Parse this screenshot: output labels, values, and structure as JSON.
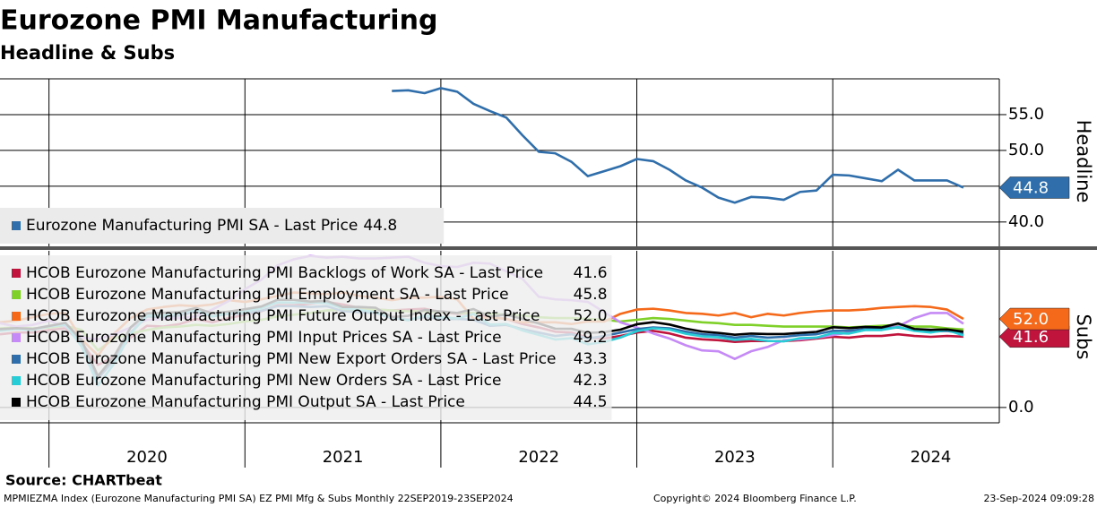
{
  "title": "Eurozone PMI Manufacturing",
  "subtitle": "Headline & Subs",
  "source": "Source: CHARTbeat",
  "footer_left": "MPMIEZMA Index (Eurozone Manufacturing PMI SA) EZ PMI Mfg & Subs  Monthly 22SEP2019-23SEP2024",
  "copyright": "Copyright© 2024 Bloomberg Finance L.P.",
  "timestamp": "23-Sep-2024 09:09:28",
  "chart_data": [
    {
      "type": "line",
      "y_label": "Headline",
      "x": [
        2021.75,
        2021.8333,
        2021.9167,
        2022,
        2022.0833,
        2022.1667,
        2022.25,
        2022.3333,
        2022.4167,
        2022.5,
        2022.5833,
        2022.6667,
        2022.75,
        2022.8333,
        2022.9167,
        2023,
        2023.0833,
        2023.1667,
        2023.25,
        2023.3333,
        2023.4167,
        2023.5,
        2023.5833,
        2023.6667,
        2023.75,
        2023.8333,
        2023.9167,
        2024,
        2024.0833,
        2024.1667,
        2024.25,
        2024.3333,
        2024.4167,
        2024.5,
        2024.5833,
        2024.6667
      ],
      "xlim": [
        2019.75,
        2024.85
      ],
      "xgrid": [
        2020,
        2021,
        2022,
        2023,
        2024
      ],
      "ylim": [
        36.6,
        60
      ],
      "ygrid": [
        40,
        45,
        50,
        55
      ],
      "yticks": [
        {
          "value": 40,
          "label": "40.0"
        },
        {
          "value": 50,
          "label": "50.0"
        },
        {
          "value": 55,
          "label": "55.0"
        }
      ],
      "series": [
        {
          "name": "Eurozone Manufacturing PMI SA - Last Price",
          "color": "#2f6eab",
          "last_label": "44.8",
          "tag": true,
          "values": [
            58.3,
            58.4,
            58.0,
            58.7,
            58.2,
            56.5,
            55.5,
            54.6,
            52.1,
            49.8,
            49.6,
            48.4,
            46.4,
            47.1,
            47.8,
            48.8,
            48.5,
            47.3,
            45.8,
            44.8,
            43.4,
            42.7,
            43.5,
            43.4,
            43.1,
            44.2,
            44.4,
            46.6,
            46.5,
            46.1,
            45.7,
            47.3,
            45.8,
            45.8,
            45.8,
            44.8
          ]
        }
      ]
    },
    {
      "type": "line",
      "y_label": "Subs",
      "x": [
        2019.75,
        2019.8333,
        2019.9167,
        2020,
        2020.0833,
        2020.1667,
        2020.25,
        2020.3333,
        2020.4167,
        2020.5,
        2020.5833,
        2020.6667,
        2020.75,
        2020.8333,
        2020.9167,
        2021,
        2021.0833,
        2021.1667,
        2021.25,
        2021.3333,
        2021.4167,
        2021.5,
        2021.5833,
        2021.6667,
        2021.75,
        2021.8333,
        2021.9167,
        2022,
        2022.0833,
        2022.1667,
        2022.25,
        2022.3333,
        2022.4167,
        2022.5,
        2022.5833,
        2022.6667,
        2022.75,
        2022.8333,
        2022.9167,
        2023,
        2023.0833,
        2023.1667,
        2023.25,
        2023.3333,
        2023.4167,
        2023.5,
        2023.5833,
        2023.6667,
        2023.75,
        2023.8333,
        2023.9167,
        2024,
        2024.0833,
        2024.1667,
        2024.25,
        2024.3333,
        2024.4167,
        2024.5,
        2024.5833,
        2024.6667
      ],
      "xlim": [
        2019.75,
        2024.85
      ],
      "xgrid": [
        2020,
        2021,
        2022,
        2023,
        2024
      ],
      "xticks": [
        {
          "value": 2020.5,
          "label": "2020"
        },
        {
          "value": 2021.5,
          "label": "2021"
        },
        {
          "value": 2022.5,
          "label": "2022"
        },
        {
          "value": 2023.5,
          "label": "2023"
        },
        {
          "value": 2024.5,
          "label": "2024"
        }
      ],
      "ylim": [
        -9,
        92
      ],
      "ygrid": [
        0
      ],
      "yticks": [
        {
          "value": 0,
          "label": "0.0"
        }
      ],
      "series": [
        {
          "name": "HCOB Eurozone Manufacturing PMI Backlogs of Work SA - Last Price",
          "color": "#c0143c",
          "last_label": "41.6",
          "tag": true,
          "values": [
            43.0,
            44.0,
            44.0,
            45.5,
            46.5,
            38.0,
            25.0,
            30.0,
            41.0,
            48.0,
            47.5,
            49.0,
            52.0,
            50.0,
            52.5,
            54.5,
            56.5,
            60.0,
            60.0,
            61.0,
            62.0,
            60.5,
            58.5,
            57.5,
            57.0,
            57.5,
            58.0,
            56.0,
            55.0,
            55.5,
            53.0,
            52.0,
            49.0,
            47.0,
            44.5,
            44.0,
            41.0,
            40.5,
            42.0,
            44.0,
            45.0,
            43.5,
            41.0,
            40.0,
            39.5,
            38.5,
            39.0,
            39.0,
            39.0,
            39.5,
            40.5,
            41.5,
            41.0,
            42.0,
            42.0,
            43.0,
            42.0,
            41.5,
            42.0,
            41.6
          ]
        },
        {
          "name": "HCOB Eurozone Manufacturing PMI Employment SA - Last Price",
          "color": "#7fd12a",
          "last_label": "45.8",
          "tag": false,
          "values": [
            46.5,
            47.0,
            46.5,
            47.0,
            48.0,
            45.5,
            33.5,
            40.5,
            43.5,
            45.5,
            47.0,
            47.5,
            48.5,
            48.0,
            49.0,
            50.5,
            51.5,
            53.5,
            54.5,
            55.5,
            57.0,
            57.5,
            57.5,
            57.5,
            57.0,
            56.5,
            56.5,
            56.0,
            55.5,
            55.5,
            55.0,
            54.5,
            54.0,
            53.0,
            52.5,
            52.5,
            52.0,
            51.5,
            50.5,
            51.5,
            52.5,
            52.0,
            51.0,
            50.0,
            49.5,
            48.5,
            48.5,
            48.0,
            47.5,
            47.5,
            47.5,
            47.5,
            47.0,
            47.5,
            48.0,
            48.5,
            47.5,
            47.5,
            46.5,
            45.8
          ]
        },
        {
          "name": "HCOB Eurozone Manufacturing PMI Future Output Index - Last Price",
          "color": "#f5691a",
          "last_label": "52.0",
          "tag": true,
          "values": [
            50.0,
            51.0,
            53.0,
            55.0,
            55.5,
            40.0,
            30.5,
            43.5,
            52.5,
            57.5,
            59.0,
            60.0,
            59.5,
            60.5,
            63.0,
            62.0,
            63.5,
            65.5,
            67.5,
            67.0,
            66.5,
            67.5,
            65.5,
            64.5,
            63.0,
            64.5,
            64.5,
            65.0,
            63.5,
            52.0,
            53.0,
            52.0,
            50.0,
            50.0,
            50.0,
            49.0,
            50.5,
            50.5,
            55.0,
            57.5,
            58.0,
            57.0,
            55.5,
            55.0,
            54.0,
            55.5,
            53.0,
            55.0,
            54.0,
            55.5,
            56.5,
            57.0,
            57.0,
            57.5,
            58.5,
            59.0,
            59.5,
            59.0,
            57.5,
            52.0
          ]
        },
        {
          "name": "HCOB Eurozone Manufacturing PMI Input Prices SA - Last Price",
          "color": "#c58af5",
          "last_label": "49.2",
          "tag": false,
          "values": [
            49.5,
            47.5,
            48.5,
            51.0,
            47.5,
            41.0,
            40.0,
            43.0,
            47.0,
            51.5,
            52.0,
            52.5,
            53.5,
            57.5,
            62.5,
            69.5,
            75.0,
            83.5,
            87.0,
            89.0,
            88.0,
            88.5,
            87.5,
            87.5,
            88.0,
            88.5,
            85.0,
            83.0,
            82.5,
            85.0,
            84.5,
            80.0,
            75.5,
            65.0,
            63.5,
            63.0,
            62.0,
            56.0,
            50.0,
            47.0,
            43.5,
            40.5,
            36.5,
            33.5,
            33.0,
            28.5,
            33.0,
            35.5,
            39.5,
            40.0,
            41.0,
            42.5,
            44.0,
            45.5,
            47.0,
            47.5,
            52.5,
            55.5,
            55.5,
            49.2
          ]
        },
        {
          "name": "HCOB Eurozone Manufacturing PMI New Export Orders SA - Last Price",
          "color": "#2f6eab",
          "last_label": "43.3",
          "tag": false,
          "values": [
            45.5,
            46.5,
            46.0,
            48.0,
            48.5,
            37.0,
            17.0,
            28.0,
            44.0,
            53.5,
            53.0,
            54.0,
            56.5,
            53.5,
            55.0,
            55.0,
            56.8,
            59.5,
            59.5,
            59.0,
            59.5,
            56.5,
            56.0,
            55.5,
            52.5,
            51.5,
            53.0,
            52.0,
            52.0,
            51.5,
            48.0,
            48.5,
            46.0,
            44.0,
            42.0,
            43.0,
            40.5,
            42.0,
            44.0,
            46.0,
            47.0,
            46.5,
            44.5,
            43.0,
            42.5,
            41.0,
            42.0,
            41.0,
            41.5,
            42.5,
            43.0,
            45.0,
            45.0,
            46.0,
            46.5,
            47.0,
            45.5,
            44.5,
            45.0,
            43.3
          ]
        },
        {
          "name": "HCOB Eurozone Manufacturing PMI New Orders SA - Last Price",
          "color": "#28ccd6",
          "last_label": "42.3",
          "tag": false,
          "values": [
            45.0,
            46.0,
            45.5,
            47.6,
            48.7,
            35.8,
            13.0,
            25.9,
            43.4,
            54.1,
            54.0,
            55.5,
            57.4,
            53.4,
            55.4,
            56.4,
            58.3,
            61.7,
            61.6,
            61.5,
            61.3,
            58.2,
            57.4,
            55.9,
            52.9,
            51.2,
            53.9,
            53.1,
            52.3,
            54.9,
            48.7,
            49.0,
            45.2,
            42.6,
            39.9,
            40.7,
            37.1,
            38.5,
            41.1,
            44.8,
            46.5,
            45.8,
            43.3,
            41.8,
            41.2,
            39.7,
            40.3,
            39.1,
            38.8,
            40.7,
            41.0,
            43.7,
            43.4,
            45.5,
            45.5,
            47.2,
            45.0,
            44.0,
            45.6,
            42.3
          ]
        },
        {
          "name": "HCOB Eurozone Manufacturing PMI Output SA - Last Price",
          "color": "#000000",
          "last_label": "44.5",
          "tag": false,
          "values": [
            46.0,
            46.6,
            46.1,
            47.8,
            49.7,
            39.5,
            18.4,
            30.2,
            47.0,
            55.3,
            55.6,
            56.0,
            58.4,
            55.3,
            56.3,
            57.7,
            59.3,
            63.3,
            63.2,
            62.2,
            62.6,
            59.0,
            59.0,
            58.6,
            53.1,
            53.8,
            57.3,
            56.4,
            55.5,
            57.8,
            53.3,
            54.6,
            52.0,
            49.3,
            46.3,
            46.2,
            43.8,
            44.2,
            45.7,
            48.9,
            50.1,
            48.7,
            46.3,
            44.6,
            43.8,
            42.7,
            43.4,
            43.1,
            43.1,
            43.8,
            44.4,
            47.1,
            46.6,
            47.3,
            47.0,
            49.3,
            46.1,
            45.6,
            45.8,
            44.5
          ]
        }
      ]
    }
  ]
}
